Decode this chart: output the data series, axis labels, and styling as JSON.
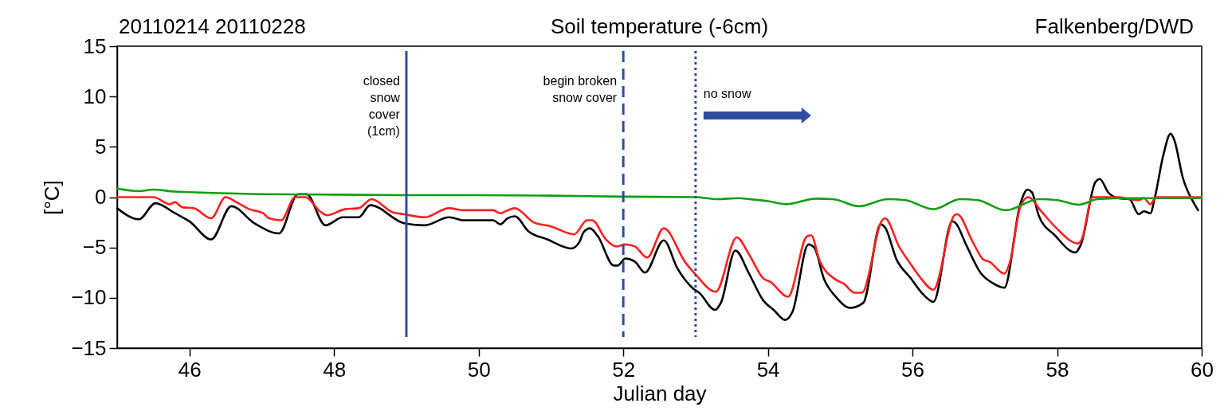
{
  "chart_data": {
    "type": "line",
    "title": "Soil temperature (-6cm)",
    "xlabel": "Julian day",
    "ylabel": "[°C]",
    "annotations": [
      "20110214 20110228",
      "Falkenberg/DWD"
    ],
    "xlim": [
      45,
      60
    ],
    "xticks": [
      46,
      48,
      50,
      52,
      54,
      56,
      58,
      60
    ],
    "ylim": [
      -15,
      15
    ],
    "yticks": [
      -15,
      -10,
      -5,
      0,
      5,
      10,
      15
    ],
    "grid": false,
    "line_style": "solid",
    "marker": "none",
    "ref_lines": [
      {
        "axis": "x",
        "value": 49,
        "label": "closed\nsnow\ncover\n(1cm)",
        "color": "#2c4d9e",
        "line_style": "solid"
      },
      {
        "axis": "x",
        "value": 52,
        "label": "begin broken\nsnow cover",
        "color": "#2c4d9e",
        "line_style": "dashed"
      },
      {
        "axis": "x",
        "value": 53,
        "label": "no snow",
        "color": "#2c4d9e",
        "line_style": "dotted"
      }
    ],
    "series": [
      {
        "color": "#000000",
        "x": [
          45.0,
          45.3,
          45.53,
          45.8,
          46.0,
          46.3,
          46.58,
          46.9,
          47.24,
          47.5,
          47.62,
          47.88,
          48.12,
          48.34,
          48.5,
          48.97,
          49.25,
          49.59,
          49.8,
          50.2,
          50.3,
          50.4,
          50.5,
          50.69,
          50.95,
          51.28,
          51.39,
          51.45,
          51.54,
          51.65,
          51.87,
          51.92,
          52.03,
          52.16,
          52.3,
          52.56,
          52.75,
          52.97,
          53.05,
          53.27,
          53.35,
          53.55,
          53.74,
          53.94,
          54.08,
          54.24,
          54.34,
          54.56,
          54.64,
          54.78,
          54.94,
          55.14,
          55.32,
          55.56,
          55.62,
          55.78,
          55.97,
          56.14,
          56.29,
          56.55,
          56.6,
          56.74,
          56.95,
          57.1,
          57.27,
          57.49,
          57.59,
          57.65,
          57.75,
          57.97,
          58.25,
          58.33,
          58.53,
          58.59,
          58.71,
          58.85,
          59.0,
          59.13,
          59.2,
          59.29,
          59.35,
          59.47,
          59.57,
          59.62,
          59.74,
          59.9,
          59.95
        ],
        "values": [
          -1.1,
          -2.2,
          -0.6,
          -1.6,
          -2.4,
          -4.2,
          -0.9,
          -2.6,
          -3.6,
          0.3,
          0.3,
          -2.8,
          -2.0,
          -2.0,
          -0.8,
          -2.6,
          -2.8,
          -2.0,
          -2.3,
          -2.3,
          -2.7,
          -2.1,
          -1.9,
          -3.4,
          -4.2,
          -5.1,
          -4.5,
          -3.5,
          -3.1,
          -3.9,
          -6.8,
          -6.8,
          -6.1,
          -6.4,
          -7.5,
          -4.3,
          -7.1,
          -9.1,
          -9.5,
          -11.2,
          -10.5,
          -5.3,
          -7.6,
          -10.3,
          -11.2,
          -12.2,
          -11.4,
          -4.7,
          -5.0,
          -8.2,
          -9.9,
          -11.0,
          -10.5,
          -2.7,
          -3.0,
          -6.2,
          -8.0,
          -9.6,
          -10.4,
          -2.4,
          -2.6,
          -4.7,
          -7.6,
          -8.5,
          -9.0,
          -0.7,
          0.75,
          0.5,
          -1.9,
          -3.8,
          -5.5,
          -4.7,
          1.5,
          1.8,
          0.45,
          -0.1,
          -0.2,
          -1.7,
          -1.4,
          -1.6,
          -0.1,
          4.2,
          6.3,
          5.7,
          1.9,
          -0.7,
          -1.3
        ]
      },
      {
        "color": "#ff2020",
        "x": [
          45.0,
          45.4,
          45.5,
          45.73,
          45.8,
          45.9,
          46.06,
          46.3,
          46.5,
          46.65,
          46.83,
          47.02,
          47.1,
          47.27,
          47.46,
          47.6,
          47.82,
          47.9,
          48.15,
          48.34,
          48.52,
          48.81,
          48.97,
          49.25,
          49.59,
          49.8,
          50.2,
          50.3,
          50.4,
          50.5,
          50.76,
          51.0,
          51.32,
          51.5,
          51.57,
          51.76,
          51.9,
          52.03,
          52.16,
          52.33,
          52.56,
          52.86,
          52.99,
          53.28,
          53.57,
          53.74,
          53.94,
          54.03,
          54.28,
          54.54,
          54.6,
          54.71,
          54.94,
          55.05,
          55.2,
          55.3,
          55.58,
          55.62,
          55.82,
          55.97,
          56.1,
          56.29,
          56.58,
          56.62,
          56.83,
          56.98,
          57.06,
          57.27,
          57.35,
          57.49,
          57.6,
          57.78,
          57.98,
          58.29,
          58.34,
          58.49,
          58.85,
          59.0,
          59.13,
          59.2,
          59.29,
          59.37,
          60.0
        ],
        "values": [
          0,
          0,
          0,
          -0.7,
          -0.5,
          -1.0,
          -1.1,
          -2.1,
          0.0,
          -0.5,
          -1.2,
          -1.6,
          -2.1,
          -2.3,
          0.0,
          0.0,
          -1.5,
          -1.8,
          -1.2,
          -1.1,
          -0.2,
          -1.5,
          -1.7,
          -2.0,
          -1.1,
          -1.3,
          -1.3,
          -1.6,
          -1.3,
          -1.1,
          -2.5,
          -2.9,
          -3.7,
          -2.3,
          -2.3,
          -4.2,
          -4.9,
          -4.7,
          -4.9,
          -6.0,
          -3.1,
          -6.5,
          -7.6,
          -9.4,
          -4.0,
          -5.7,
          -8.1,
          -8.4,
          -9.9,
          -3.9,
          -3.8,
          -6.2,
          -8.2,
          -8.6,
          -9.5,
          -9.5,
          -2.3,
          -2.1,
          -5.0,
          -6.6,
          -7.9,
          -9.2,
          -1.8,
          -1.7,
          -4.4,
          -6.2,
          -6.4,
          -7.6,
          -6.4,
          -1.0,
          0.0,
          -1.4,
          -3.0,
          -4.6,
          -4.2,
          0.0,
          0.0,
          -0.2,
          -0.3,
          -0.1,
          -0.7,
          0.0,
          0.0
        ]
      },
      {
        "color": "#10a010",
        "x": [
          45.0,
          45.3,
          45.5,
          45.8,
          46,
          47,
          48,
          49,
          50,
          51,
          52,
          53,
          53.3,
          53.6,
          53.74,
          54.0,
          54.26,
          54.66,
          54.9,
          55.26,
          55.66,
          55.9,
          56.29,
          56.66,
          56.9,
          57.29,
          57.75,
          58.0,
          58.3,
          58.56,
          59.0,
          60.0
        ],
        "values": [
          0.85,
          0.6,
          0.75,
          0.55,
          0.5,
          0.3,
          0.25,
          0.2,
          0.2,
          0.15,
          0.05,
          0.0,
          -0.2,
          -0.1,
          -0.2,
          -0.4,
          -0.7,
          -0.15,
          -0.2,
          -0.9,
          -0.2,
          -0.3,
          -1.2,
          -0.2,
          -0.3,
          -1.3,
          -0.2,
          -0.3,
          -0.75,
          -0.2,
          -0.1,
          -0.1
        ]
      }
    ]
  }
}
